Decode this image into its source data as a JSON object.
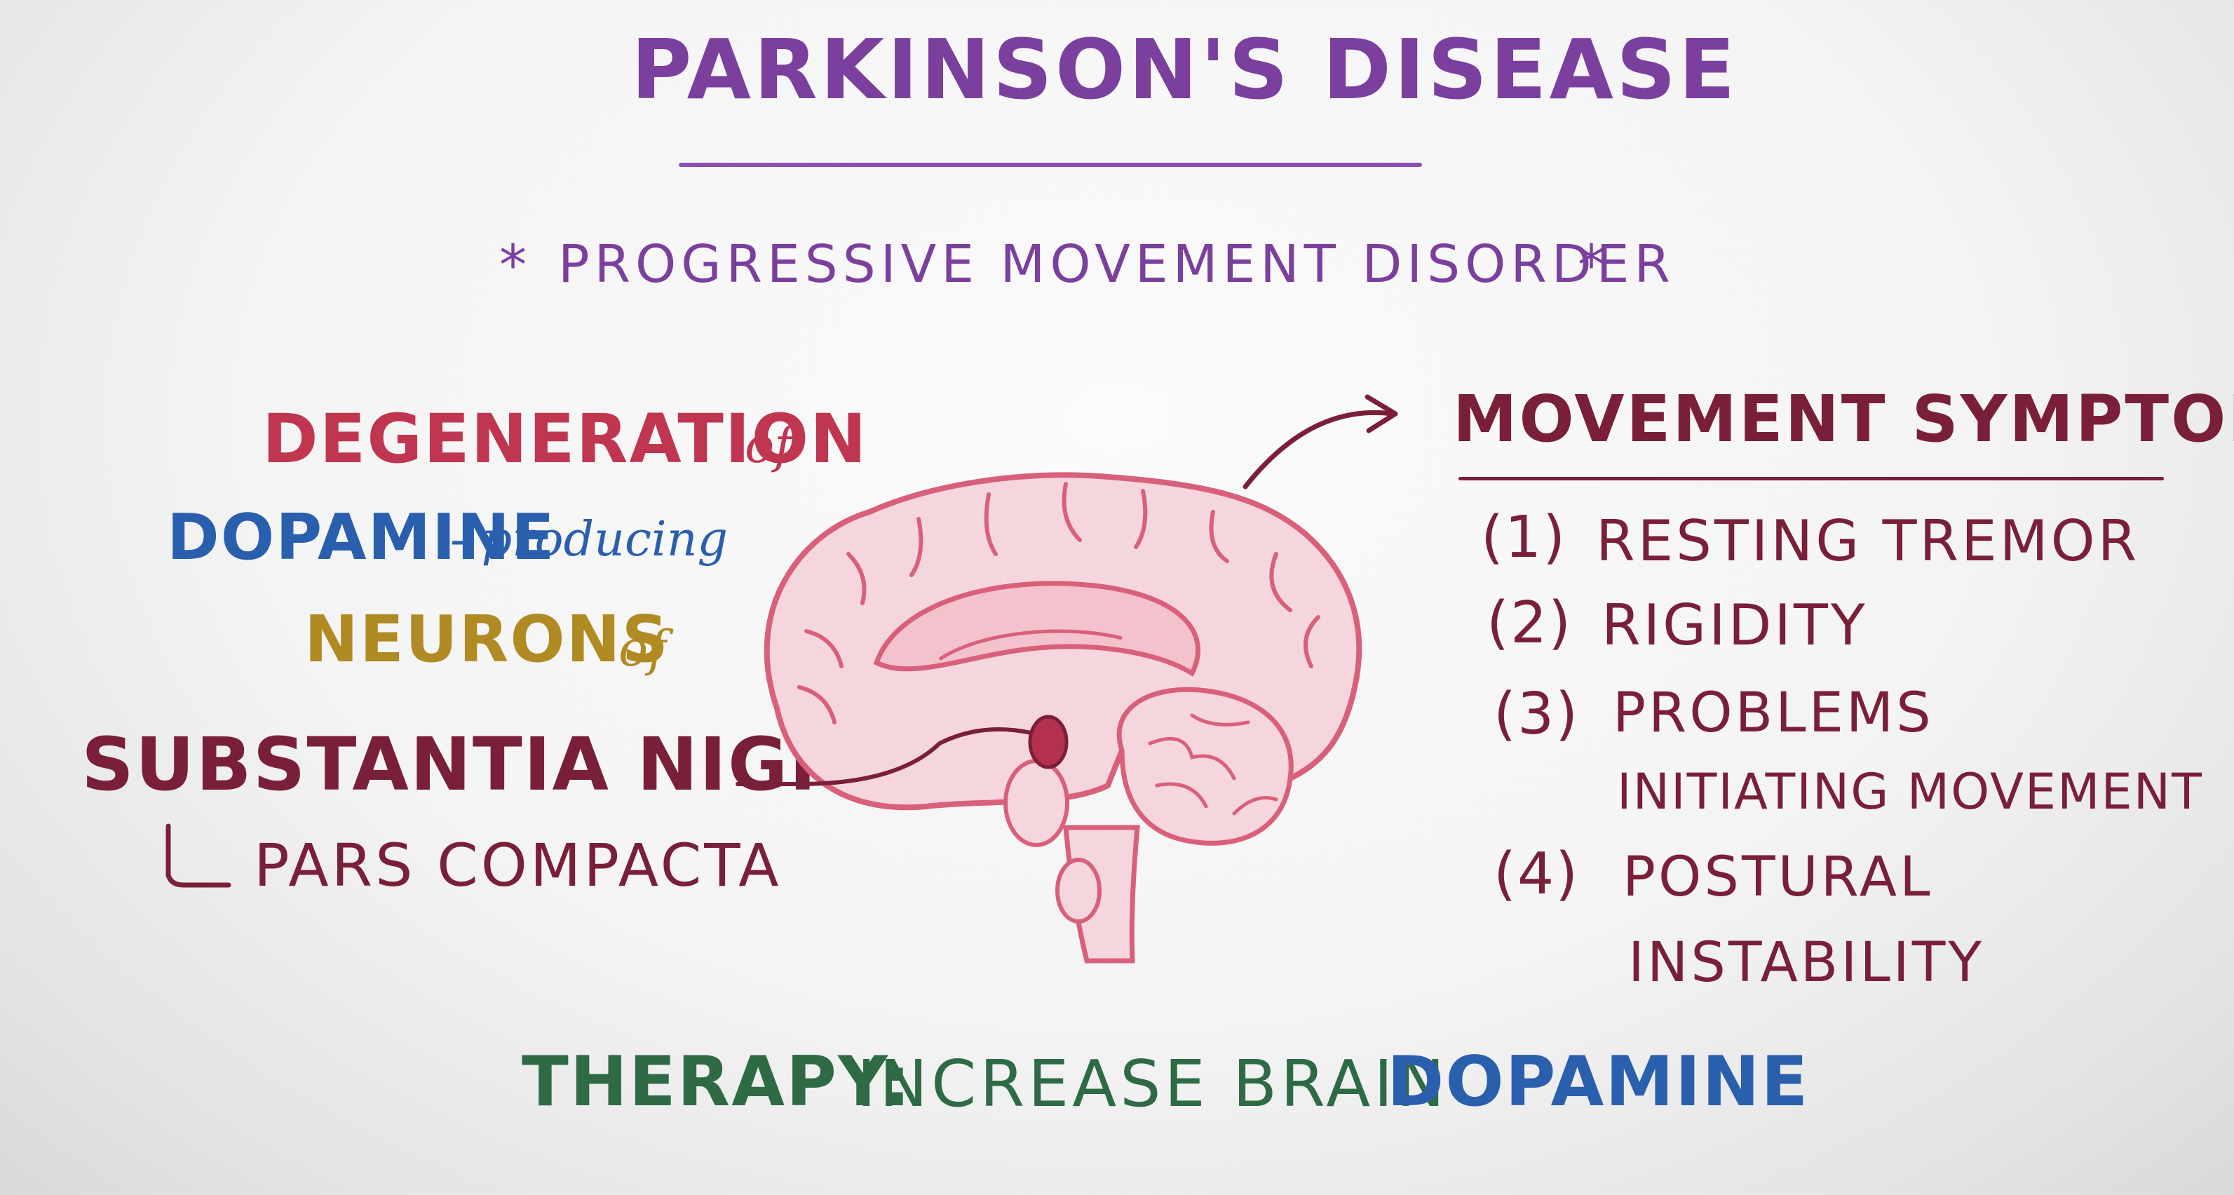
{
  "title": "PARKINSON'S DISEASE",
  "subtitle": {
    "marker_left": "*",
    "text": "PROGRESSIVE MOVEMENT DISORDER",
    "marker_right": "*"
  },
  "pathology": {
    "line1_main": "DEGENERATION",
    "line1_join": "of",
    "line2_main": "DOPAMINE",
    "line2_join": "- producing",
    "line3_main": "NEURONS",
    "line3_join": "of",
    "region": "SUBSTANTIA NIGRA",
    "subregion": "PARS COMPACTA"
  },
  "symptoms": {
    "heading": "MOVEMENT SYMPTOMS",
    "items": [
      {
        "num": "(1)",
        "line1": "RESTING TREMOR",
        "line2": ""
      },
      {
        "num": "(2)",
        "line1": "RIGIDITY",
        "line2": ""
      },
      {
        "num": "(3)",
        "line1": "PROBLEMS",
        "line2": "INITIATING MOVEMENT"
      },
      {
        "num": "(4)",
        "line1": "POSTURAL",
        "line2": "INSTABILITY"
      }
    ]
  },
  "therapy": {
    "label": "THERAPY:",
    "text": "INCREASE BRAIN",
    "target": "DOPAMINE"
  },
  "colors": {
    "title": "#7b3f9e",
    "degeneration": "#c0354f",
    "dopamine": "#2a5fae",
    "neurons": "#b08a22",
    "substantia": "#7a1f3a",
    "symptoms": "#7a1f3a",
    "therapy": "#2e6b45",
    "brain_fill": "#f6d6dd",
    "brain_stroke": "#d9607a"
  },
  "icons": {
    "brain": "brain-icon",
    "arrow": "curved-arrow-icon"
  }
}
